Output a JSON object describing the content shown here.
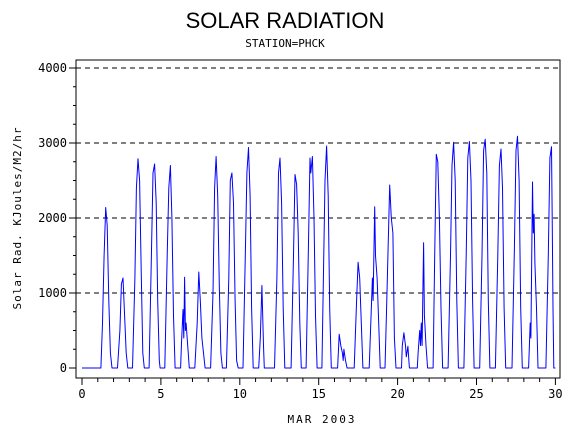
{
  "chart_data": {
    "type": "line",
    "title": "SOLAR RADIATION",
    "subtitle": "STATION=PHCK",
    "xlabel": "MAR 2003",
    "ylabel": "Solar Rad. KJoules/M2/hr",
    "xlim": [
      0,
      30
    ],
    "ylim": [
      0,
      4000
    ],
    "xticks": [
      0,
      5,
      10,
      15,
      20,
      25,
      30
    ],
    "yticks": [
      0,
      1000,
      2000,
      3000,
      4000
    ],
    "grid": "horizontal dashed at y ticks",
    "series_color": "#0000ff",
    "series": [
      {
        "values": [
          [
            0.0,
            0
          ],
          [
            1.0,
            0
          ],
          [
            1.2,
            0
          ],
          [
            1.3,
            600
          ],
          [
            1.4,
            1500
          ],
          [
            1.5,
            2140
          ],
          [
            1.6,
            1900
          ],
          [
            1.7,
            900
          ],
          [
            1.8,
            200
          ],
          [
            1.9,
            0
          ],
          [
            2.25,
            0
          ],
          [
            2.4,
            500
          ],
          [
            2.5,
            1120
          ],
          [
            2.6,
            1200
          ],
          [
            2.7,
            700
          ],
          [
            2.8,
            200
          ],
          [
            2.9,
            0
          ],
          [
            3.2,
            0
          ],
          [
            3.35,
            1200
          ],
          [
            3.45,
            2400
          ],
          [
            3.55,
            2790
          ],
          [
            3.65,
            2500
          ],
          [
            3.75,
            1300
          ],
          [
            3.85,
            200
          ],
          [
            3.95,
            0
          ],
          [
            4.25,
            0
          ],
          [
            4.4,
            1500
          ],
          [
            4.5,
            2600
          ],
          [
            4.6,
            2720
          ],
          [
            4.7,
            2200
          ],
          [
            4.8,
            900
          ],
          [
            4.9,
            100
          ],
          [
            4.95,
            0
          ],
          [
            5.25,
            0
          ],
          [
            5.4,
            1500
          ],
          [
            5.5,
            2400
          ],
          [
            5.6,
            2700
          ],
          [
            5.7,
            2000
          ],
          [
            5.8,
            700
          ],
          [
            5.9,
            0
          ],
          [
            6.25,
            0
          ],
          [
            6.3,
            300
          ],
          [
            6.4,
            780
          ],
          [
            6.45,
            400
          ],
          [
            6.5,
            1210
          ],
          [
            6.55,
            500
          ],
          [
            6.6,
            600
          ],
          [
            6.7,
            300
          ],
          [
            6.8,
            0
          ],
          [
            7.15,
            0
          ],
          [
            7.3,
            600
          ],
          [
            7.4,
            1280
          ],
          [
            7.5,
            900
          ],
          [
            7.6,
            400
          ],
          [
            7.7,
            200
          ],
          [
            7.8,
            0
          ],
          [
            8.15,
            0
          ],
          [
            8.3,
            1000
          ],
          [
            8.4,
            2400
          ],
          [
            8.5,
            2820
          ],
          [
            8.6,
            2300
          ],
          [
            8.7,
            1100
          ],
          [
            8.8,
            200
          ],
          [
            8.9,
            0
          ],
          [
            9.15,
            0
          ],
          [
            9.3,
            1200
          ],
          [
            9.4,
            2500
          ],
          [
            9.5,
            2600
          ],
          [
            9.6,
            2200
          ],
          [
            9.7,
            900
          ],
          [
            9.8,
            100
          ],
          [
            9.9,
            0
          ],
          [
            10.2,
            0
          ],
          [
            10.35,
            1500
          ],
          [
            10.45,
            2600
          ],
          [
            10.55,
            2940
          ],
          [
            10.65,
            2300
          ],
          [
            10.75,
            800
          ],
          [
            10.85,
            0
          ],
          [
            11.2,
            0
          ],
          [
            11.3,
            400
          ],
          [
            11.4,
            1100
          ],
          [
            11.5,
            300
          ],
          [
            11.55,
            0
          ],
          [
            12.2,
            0
          ],
          [
            12.35,
            1200
          ],
          [
            12.45,
            2600
          ],
          [
            12.55,
            2800
          ],
          [
            12.65,
            2200
          ],
          [
            12.75,
            800
          ],
          [
            12.85,
            0
          ],
          [
            13.25,
            0
          ],
          [
            13.4,
            1500
          ],
          [
            13.5,
            2580
          ],
          [
            13.6,
            2450
          ],
          [
            13.7,
            1800
          ],
          [
            13.8,
            600
          ],
          [
            13.9,
            0
          ],
          [
            14.2,
            0
          ],
          [
            14.35,
            1600
          ],
          [
            14.45,
            2800
          ],
          [
            14.5,
            2600
          ],
          [
            14.6,
            2820
          ],
          [
            14.7,
            2000
          ],
          [
            14.8,
            700
          ],
          [
            14.9,
            0
          ],
          [
            15.2,
            0
          ],
          [
            15.3,
            1200
          ],
          [
            15.4,
            2500
          ],
          [
            15.5,
            2960
          ],
          [
            15.6,
            2300
          ],
          [
            15.7,
            800
          ],
          [
            15.8,
            0
          ],
          [
            16.2,
            0
          ],
          [
            16.3,
            450
          ],
          [
            16.4,
            300
          ],
          [
            16.5,
            200
          ],
          [
            16.55,
            100
          ],
          [
            16.6,
            250
          ],
          [
            16.7,
            100
          ],
          [
            16.8,
            0
          ],
          [
            17.25,
            0
          ],
          [
            17.4,
            900
          ],
          [
            17.5,
            1410
          ],
          [
            17.6,
            1200
          ],
          [
            17.7,
            600
          ],
          [
            17.8,
            0
          ],
          [
            18.2,
            0
          ],
          [
            18.3,
            600
          ],
          [
            18.4,
            1200
          ],
          [
            18.45,
            900
          ],
          [
            18.55,
            2150
          ],
          [
            18.6,
            1500
          ],
          [
            18.7,
            1200
          ],
          [
            18.8,
            600
          ],
          [
            18.9,
            0
          ],
          [
            19.2,
            0
          ],
          [
            19.3,
            800
          ],
          [
            19.4,
            1600
          ],
          [
            19.5,
            2440
          ],
          [
            19.6,
            2000
          ],
          [
            19.7,
            1800
          ],
          [
            19.8,
            400
          ],
          [
            19.9,
            0
          ],
          [
            20.25,
            0
          ],
          [
            20.3,
            300
          ],
          [
            20.4,
            470
          ],
          [
            20.5,
            300
          ],
          [
            20.55,
            150
          ],
          [
            20.65,
            290
          ],
          [
            20.75,
            0
          ],
          [
            21.25,
            0
          ],
          [
            21.3,
            200
          ],
          [
            21.4,
            500
          ],
          [
            21.45,
            300
          ],
          [
            21.5,
            600
          ],
          [
            21.55,
            300
          ],
          [
            21.65,
            1670
          ],
          [
            21.7,
            700
          ],
          [
            21.8,
            300
          ],
          [
            21.9,
            0
          ],
          [
            22.25,
            0
          ],
          [
            22.35,
            1500
          ],
          [
            22.45,
            2850
          ],
          [
            22.55,
            2750
          ],
          [
            22.65,
            2000
          ],
          [
            22.75,
            800
          ],
          [
            22.85,
            0
          ],
          [
            23.2,
            0
          ],
          [
            23.35,
            1500
          ],
          [
            23.45,
            2700
          ],
          [
            23.55,
            3010
          ],
          [
            23.65,
            2500
          ],
          [
            23.75,
            900
          ],
          [
            23.85,
            0
          ],
          [
            24.2,
            0
          ],
          [
            24.35,
            1500
          ],
          [
            24.45,
            2800
          ],
          [
            24.55,
            3020
          ],
          [
            24.65,
            2500
          ],
          [
            24.75,
            900
          ],
          [
            24.85,
            0
          ],
          [
            25.2,
            0
          ],
          [
            25.35,
            1500
          ],
          [
            25.45,
            2900
          ],
          [
            25.55,
            3050
          ],
          [
            25.65,
            2600
          ],
          [
            25.75,
            900
          ],
          [
            25.85,
            0
          ],
          [
            26.2,
            0
          ],
          [
            26.35,
            1500
          ],
          [
            26.45,
            2700
          ],
          [
            26.55,
            2920
          ],
          [
            26.65,
            2400
          ],
          [
            26.75,
            800
          ],
          [
            26.85,
            0
          ],
          [
            27.25,
            0
          ],
          [
            27.4,
            1600
          ],
          [
            27.5,
            2900
          ],
          [
            27.6,
            3090
          ],
          [
            27.7,
            2500
          ],
          [
            27.8,
            800
          ],
          [
            27.9,
            0
          ],
          [
            28.3,
            0
          ],
          [
            28.4,
            600
          ],
          [
            28.45,
            400
          ],
          [
            28.55,
            2480
          ],
          [
            28.6,
            1800
          ],
          [
            28.65,
            2050
          ],
          [
            28.7,
            1400
          ],
          [
            28.8,
            800
          ],
          [
            28.9,
            0
          ],
          [
            29.4,
            0
          ],
          [
            29.55,
            1500
          ],
          [
            29.65,
            2800
          ],
          [
            29.75,
            2950
          ],
          [
            29.8,
            2000
          ],
          [
            29.85,
            800
          ],
          [
            29.9,
            0
          ],
          [
            30.0,
            0
          ]
        ]
      }
    ]
  }
}
